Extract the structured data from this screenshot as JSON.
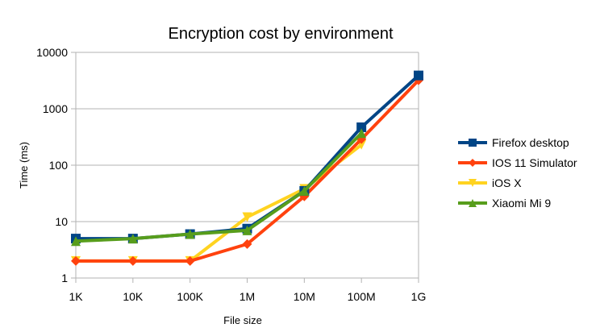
{
  "chart_data": {
    "type": "line",
    "title": "Encryption cost by environment",
    "xlabel": "File size",
    "ylabel": "Time (ms)",
    "yscale": "log",
    "ylim": [
      1,
      10000
    ],
    "yticks": [
      "1",
      "10",
      "100",
      "1000",
      "10000"
    ],
    "ytick_values": [
      1,
      10,
      100,
      1000,
      10000
    ],
    "categories": [
      "1K",
      "10K",
      "100K",
      "1M",
      "10M",
      "100M",
      "1G"
    ],
    "grid": "horizontal",
    "legend_position": "right",
    "series": [
      {
        "name": "Firefox desktop",
        "color": "#004586",
        "marker": "square",
        "values": [
          5,
          5,
          6,
          7.5,
          35,
          470,
          3900
        ]
      },
      {
        "name": "IOS 11 Simulator",
        "color": "#ff420e",
        "marker": "diamond",
        "values": [
          2,
          2,
          2,
          4,
          28,
          290,
          3200
        ]
      },
      {
        "name": "iOS X",
        "color": "#ffd320",
        "marker": "triangle-down",
        "values": [
          2,
          2,
          2,
          12,
          38,
          230,
          null
        ]
      },
      {
        "name": "Xiaomi Mi 9",
        "color": "#579d1c",
        "marker": "triangle-up",
        "values": [
          4.5,
          5,
          6,
          7,
          35,
          370,
          null
        ]
      }
    ]
  }
}
